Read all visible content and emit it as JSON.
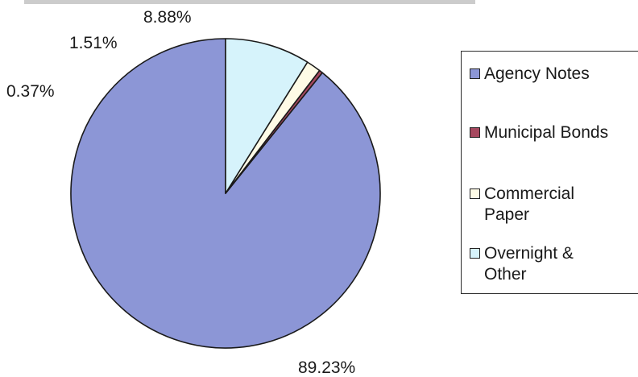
{
  "chart_data": {
    "type": "pie",
    "title": "",
    "slices": [
      {
        "label": "Agency Notes",
        "value": 89.23,
        "value_label": "89.23%",
        "color": "#8c96d6"
      },
      {
        "label": "Municipal Bonds",
        "value": 0.37,
        "value_label": "0.37%",
        "color": "#a6485f"
      },
      {
        "label": "Commercial Paper",
        "value": 1.51,
        "value_label": "1.51%",
        "color": "#fefbe6"
      },
      {
        "label": "Overnight & Other",
        "value": 8.88,
        "value_label": "8.88%",
        "color": "#d6f3fb"
      }
    ],
    "legend": {
      "position": "right",
      "entries": [
        {
          "lines": [
            "Agency Notes"
          ]
        },
        {
          "lines": [
            "Municipal Bonds"
          ]
        },
        {
          "lines": [
            "Commercial",
            "Paper"
          ]
        },
        {
          "lines": [
            "Overnight &",
            "Other"
          ]
        }
      ]
    },
    "start": "12 o'clock, counter-clockwise"
  }
}
